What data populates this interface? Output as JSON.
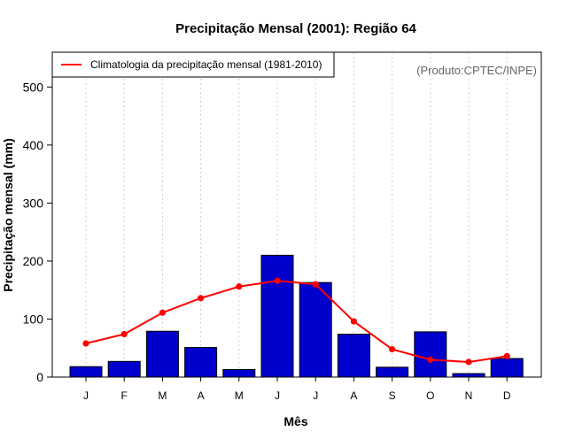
{
  "chart_data": {
    "type": "bar",
    "title": "Precipitação Mensal (2001): Região 64",
    "xlabel": "Mês",
    "ylabel": "Precipitação mensal (mm)",
    "credit": "(Produto:CPTEC/INPE)",
    "categories": [
      "J",
      "F",
      "M",
      "A",
      "M",
      "J",
      "J",
      "A",
      "S",
      "O",
      "N",
      "D"
    ],
    "ylim": [
      0,
      560
    ],
    "yticks": [
      0,
      100,
      200,
      300,
      400,
      500
    ],
    "series": [
      {
        "name": "Precipitação mensal (2001)",
        "type": "bar",
        "color": "#0000cc",
        "values": [
          18,
          27,
          79,
          51,
          13,
          210,
          163,
          74,
          17,
          78,
          6,
          32
        ]
      },
      {
        "name": "Climatologia da precipitação mensal (1981-2010)",
        "type": "line",
        "color": "#ff0000",
        "values": [
          58,
          74,
          111,
          136,
          156,
          166,
          160,
          96,
          48,
          30,
          26,
          36
        ]
      }
    ],
    "legend": {
      "position": "top-left",
      "entries": [
        "Climatologia da precipitação mensal (1981-2010)"
      ]
    },
    "grid": {
      "vertical": true,
      "horizontal": false
    }
  }
}
